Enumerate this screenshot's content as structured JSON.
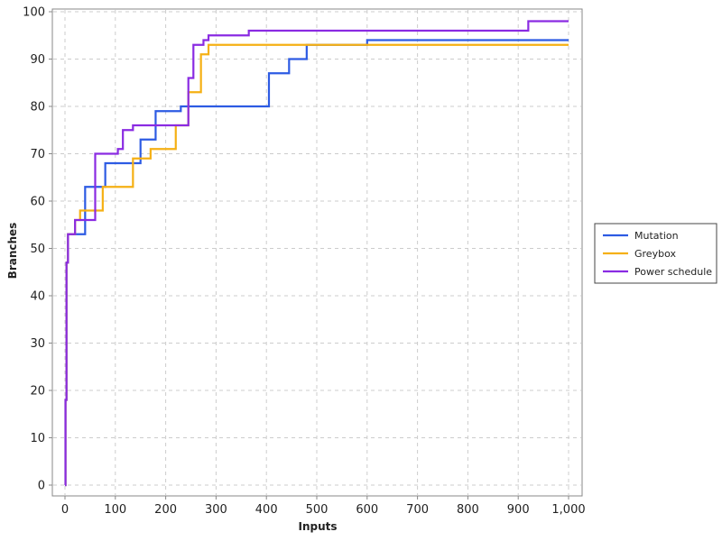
{
  "chart_data": {
    "type": "line",
    "title": "",
    "xlabel": "Inputs",
    "ylabel": "Branches",
    "xlim": [
      0,
      1000
    ],
    "ylim": [
      0,
      100
    ],
    "x_ticks": [
      {
        "value": 0,
        "label": "0"
      },
      {
        "value": 100,
        "label": "100"
      },
      {
        "value": 200,
        "label": "200"
      },
      {
        "value": 300,
        "label": "300"
      },
      {
        "value": 400,
        "label": "400"
      },
      {
        "value": 500,
        "label": "500"
      },
      {
        "value": 600,
        "label": "600"
      },
      {
        "value": 700,
        "label": "700"
      },
      {
        "value": 800,
        "label": "800"
      },
      {
        "value": 900,
        "label": "900"
      },
      {
        "value": 1000,
        "label": "1,000"
      }
    ],
    "y_ticks": [
      {
        "value": 0,
        "label": "0"
      },
      {
        "value": 10,
        "label": "10"
      },
      {
        "value": 20,
        "label": "20"
      },
      {
        "value": 30,
        "label": "30"
      },
      {
        "value": 40,
        "label": "40"
      },
      {
        "value": 50,
        "label": "50"
      },
      {
        "value": 60,
        "label": "60"
      },
      {
        "value": 70,
        "label": "70"
      },
      {
        "value": 80,
        "label": "80"
      },
      {
        "value": 90,
        "label": "90"
      },
      {
        "value": 100,
        "label": "100"
      }
    ],
    "grid": true,
    "step": true,
    "legend_position": "right",
    "series": [
      {
        "name": "Mutation",
        "color": "#2d5be3",
        "x": [
          0,
          1,
          3,
          6,
          10,
          20,
          40,
          80,
          150,
          180,
          230,
          405,
          445,
          480,
          600,
          1000
        ],
        "y": [
          0,
          18,
          47,
          53,
          53,
          53,
          63,
          68,
          73,
          79,
          80,
          87,
          90,
          93,
          94,
          94
        ]
      },
      {
        "name": "Greybox",
        "color": "#f5b014",
        "x": [
          0,
          1,
          3,
          6,
          10,
          20,
          30,
          75,
          135,
          170,
          220,
          245,
          270,
          285,
          1000
        ],
        "y": [
          0,
          18,
          47,
          53,
          53,
          56,
          58,
          63,
          69,
          71,
          76,
          83,
          91,
          93,
          93
        ]
      },
      {
        "name": "Power schedule",
        "color": "#8a2be2",
        "x": [
          0,
          1,
          3,
          6,
          10,
          20,
          60,
          105,
          115,
          135,
          245,
          255,
          275,
          285,
          365,
          920,
          1000
        ],
        "y": [
          0,
          18,
          47,
          53,
          53,
          56,
          70,
          71,
          75,
          76,
          86,
          93,
          94,
          95,
          96,
          98,
          98
        ]
      }
    ]
  }
}
